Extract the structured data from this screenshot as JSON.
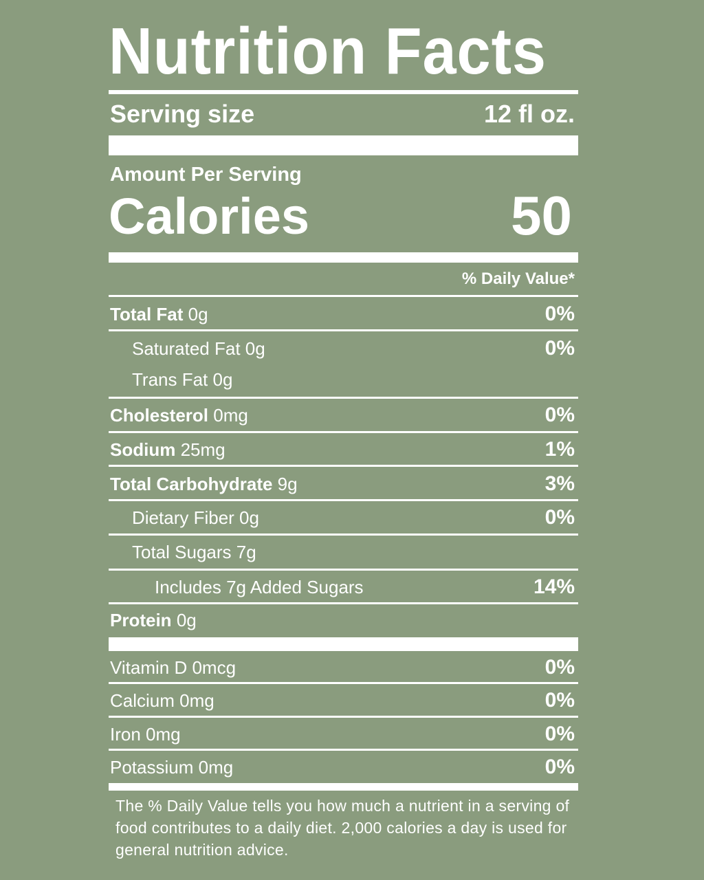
{
  "title": "Nutrition Facts",
  "serving": {
    "label": "Serving size",
    "value": "12 fl oz."
  },
  "amount_per_serving": "Amount Per Serving",
  "calories": {
    "label": "Calories",
    "value": 50
  },
  "daily_value_header": "% Daily Value*",
  "nutrients": [
    {
      "name": "Total Fat",
      "amount": "0g",
      "dv": "0%"
    },
    {
      "name": "Saturated Fat 0g",
      "dv": "0%"
    },
    {
      "name": "Trans Fat 0g"
    },
    {
      "name": "Cholesterol",
      "amount": "0mg",
      "dv": "0%"
    },
    {
      "name": "Sodium",
      "amount": "25mg",
      "dv": "1%"
    },
    {
      "name": "Total Carbohydrate",
      "amount": "9g",
      "dv": "3%"
    },
    {
      "name": "Dietary Fiber 0g",
      "dv": "0%"
    },
    {
      "name": "Total Sugars 7g"
    },
    {
      "name": "Includes 7g Added Sugars",
      "dv": "14%"
    },
    {
      "name": "Protein",
      "amount": "0g"
    }
  ],
  "vitamins": [
    {
      "name": "Vitamin D 0mcg",
      "dv": "0%"
    },
    {
      "name": "Calcium 0mg",
      "dv": "0%"
    },
    {
      "name": "Iron 0mg",
      "dv": "0%"
    },
    {
      "name": "Potassium 0mg",
      "dv": "0%"
    }
  ],
  "footnote": "The % Daily Value tells you how much a nutrient in a serving of food contributes to a daily diet. 2,000 calories a day is used for general nutrition advice."
}
